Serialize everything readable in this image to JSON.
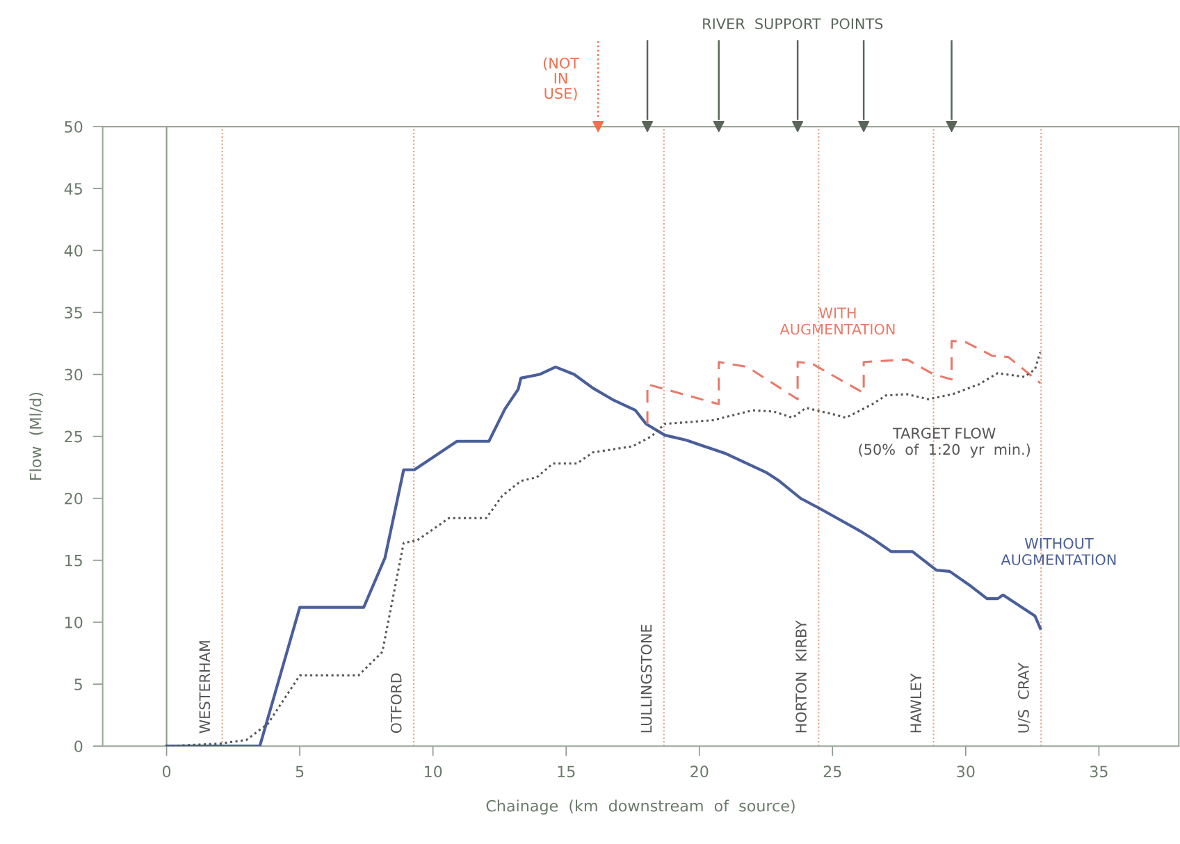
{
  "chart_data": {
    "type": "line",
    "xlabel": "Chainage  (km  downstream  of  source)",
    "ylabel": "Flow  (Ml/d)",
    "xlim": [
      -2.4,
      38
    ],
    "xticks": [
      0,
      5,
      10,
      15,
      20,
      25,
      30,
      35
    ],
    "ylim": [
      0,
      50
    ],
    "yticks": [
      0,
      5,
      10,
      15,
      20,
      25,
      30,
      35,
      40,
      45,
      50
    ],
    "grid": false,
    "legend": false,
    "series": [
      {
        "name": "WITHOUT\nAUGMENTATION",
        "color": "#4a5f9a",
        "line_style": "solid",
        "marker": "none",
        "x": [
          0,
          3.5,
          5.0,
          7.4,
          8.2,
          8.9,
          9.3,
          10.9,
          12.1,
          12.7,
          13.2,
          13.3,
          14.0,
          14.6,
          15.3,
          16.0,
          16.8,
          17.6,
          18.0,
          18.7,
          19.5,
          21.0,
          22.5,
          23.0,
          23.8,
          24.5,
          26.0,
          26.6,
          27.2,
          28.0,
          28.9,
          29.4,
          30.2,
          30.8,
          31.2,
          31.4,
          32.6,
          32.8
        ],
        "values": [
          0,
          0,
          11.2,
          11.2,
          15.2,
          22.3,
          22.3,
          24.6,
          24.6,
          27.2,
          28.8,
          29.7,
          30.0,
          30.6,
          30.0,
          28.9,
          27.9,
          27.1,
          26.0,
          25.1,
          24.7,
          23.6,
          22.1,
          21.4,
          20.0,
          19.2,
          17.4,
          16.6,
          15.7,
          15.7,
          14.2,
          14.1,
          12.9,
          11.9,
          11.9,
          12.2,
          10.5,
          9.5
        ]
      },
      {
        "name": "WITH\nAUGMENTATION",
        "color": "#e87a6a",
        "line_style": "dashed",
        "marker": "none",
        "x": [
          18.05,
          18.05,
          20.73,
          20.73,
          21.8,
          23.69,
          23.69,
          24.2,
          26.17,
          26.17,
          27.8,
          28.8,
          29.47,
          29.47,
          30.0,
          31.0,
          31.6,
          32.8
        ],
        "values": [
          26.0,
          29.2,
          27.6,
          31.0,
          30.6,
          28.0,
          31.0,
          30.9,
          28.5,
          31.0,
          31.2,
          30.0,
          29.6,
          32.7,
          32.6,
          31.5,
          31.4,
          29.3
        ]
      },
      {
        "name": "TARGET FLOW\n(50%  of  1:20  yr  min.)",
        "color": "#555555",
        "line_style": "dotted",
        "marker": "none",
        "x": [
          0,
          2,
          3.0,
          3.8,
          5.0,
          7.2,
          8.1,
          8.9,
          9.4,
          10.6,
          12.0,
          12.6,
          13.3,
          13.9,
          14.5,
          15.4,
          16.0,
          17.5,
          18.2,
          18.7,
          20.5,
          22.0,
          22.8,
          23.5,
          24.0,
          25.0,
          25.5,
          26.5,
          27.0,
          27.8,
          28.6,
          29.5,
          30.5,
          31.2,
          32.2,
          32.6,
          32.8
        ],
        "values": [
          0,
          0.2,
          0.5,
          1.8,
          5.7,
          5.7,
          7.6,
          16.4,
          16.6,
          18.4,
          18.4,
          20.2,
          21.4,
          21.7,
          22.8,
          22.8,
          23.7,
          24.2,
          25.0,
          26.0,
          26.3,
          27.1,
          27.0,
          26.5,
          27.3,
          26.8,
          26.5,
          27.6,
          28.3,
          28.4,
          28.0,
          28.4,
          29.2,
          30.1,
          29.8,
          30.4,
          31.8
        ]
      },
      {
        "name": "(NOT\nIN\nUSE)",
        "type": "scatter",
        "color": "#f07050",
        "marker": "triangle",
        "line_style": "dotted",
        "x": [
          16.2
        ],
        "values": [
          50
        ]
      },
      {
        "name": "RIVER  SUPPORT  POINTS",
        "type": "scatter",
        "color": "#5a665a",
        "marker": "triangle",
        "line_style": "solid",
        "x": [
          18.05,
          20.73,
          23.69,
          26.17,
          29.47
        ],
        "values": [
          50,
          50,
          50,
          50,
          50
        ]
      }
    ],
    "ref_lines": [
      {
        "axis": "x",
        "value": 0,
        "label": null,
        "color": "#8a9a8a",
        "line_style": "solid"
      },
      {
        "axis": "x",
        "value": 2.09,
        "label": "WESTERHAM",
        "color": "#e0a080",
        "line_style": "dotted"
      },
      {
        "axis": "x",
        "value": 9.28,
        "label": "OTFORD",
        "color": "#e0a080",
        "line_style": "dotted"
      },
      {
        "axis": "x",
        "value": 18.67,
        "label": "LULLINGSTONE",
        "color": "#e0a080",
        "line_style": "dotted"
      },
      {
        "axis": "x",
        "value": 24.48,
        "label": "HORTON  KIRBY",
        "color": "#e0a080",
        "line_style": "dotted"
      },
      {
        "axis": "x",
        "value": 28.79,
        "label": "HAWLEY",
        "color": "#e0a080",
        "line_style": "dotted"
      },
      {
        "axis": "x",
        "value": 32.83,
        "label": "U/S  CRAY",
        "color": "#e0a080",
        "line_style": "dotted"
      }
    ]
  }
}
